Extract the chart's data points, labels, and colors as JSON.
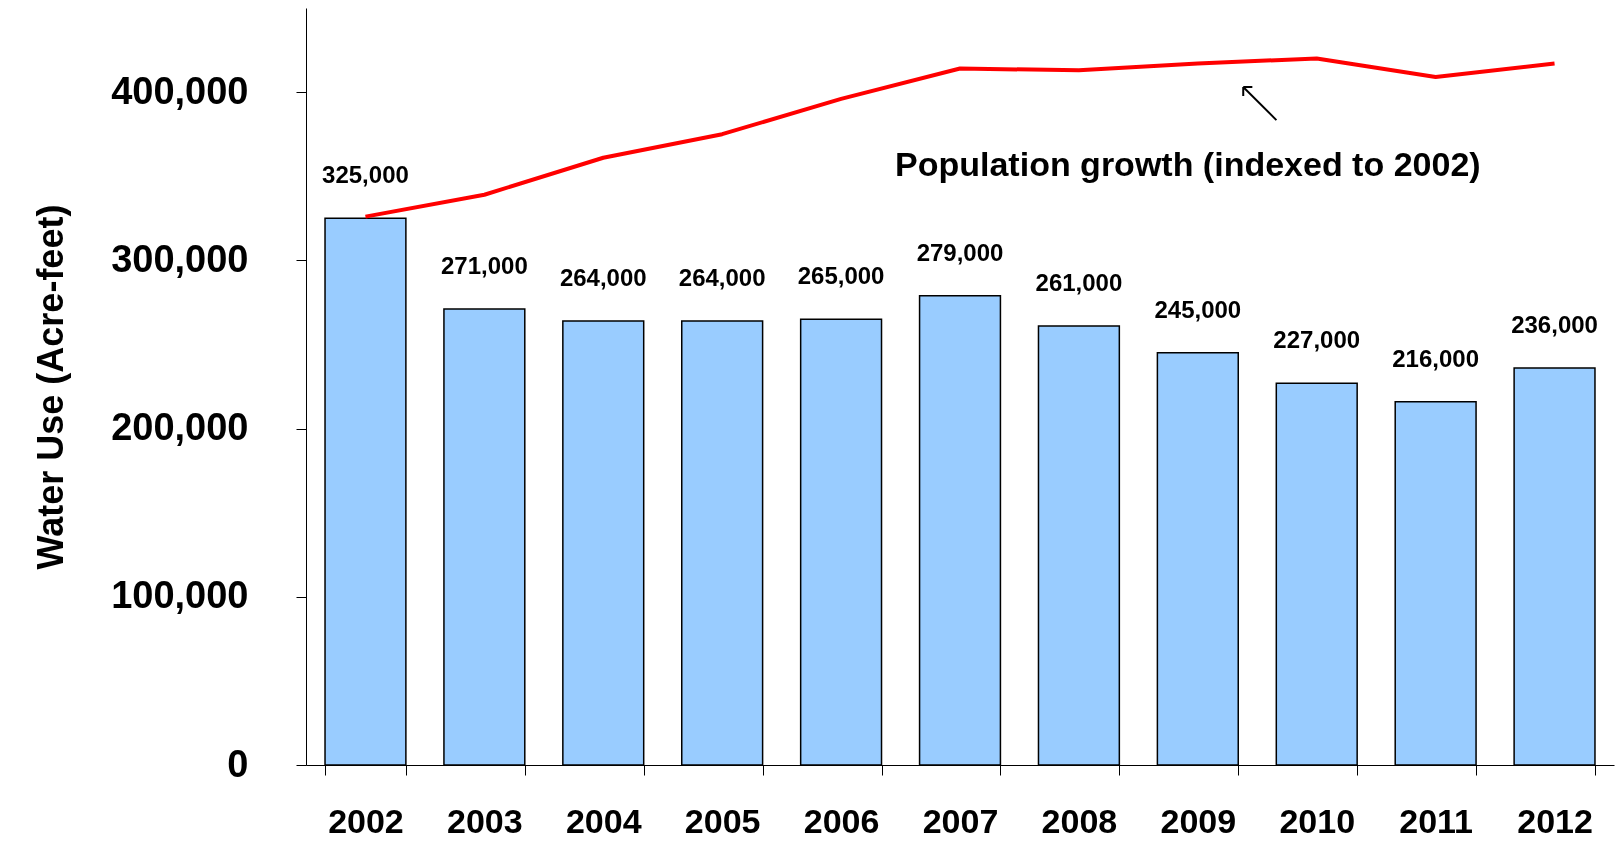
{
  "chart_data": {
    "type": "bar",
    "ylabel": "Water Use (Acre-feet)",
    "categories": [
      "2002",
      "2003",
      "2004",
      "2005",
      "2006",
      "2007",
      "2008",
      "2009",
      "2010",
      "2011",
      "2012"
    ],
    "series": [
      {
        "color": "#99ccff",
        "values": [
          325000,
          271000,
          264000,
          264000,
          265000,
          279000,
          261000,
          245000,
          227000,
          216000,
          236000
        ],
        "value_labels": [
          "325,000",
          "271,000",
          "264,000",
          "264,000",
          "265,000",
          "279,000",
          "261,000",
          "245,000",
          "227,000",
          "216,000",
          "236,000"
        ]
      },
      {
        "type": "line",
        "name": "Population growth (indexed to 2002)",
        "color": "#ff0000",
        "values": [
          326000,
          339000,
          361000,
          375000,
          396000,
          414000,
          413000,
          417000,
          420000,
          409000,
          417000
        ]
      }
    ],
    "ylim": [
      0,
      450000
    ],
    "yticks": [
      0,
      {
        "value": 100000,
        "label": "100,000"
      },
      {
        "value": 200000,
        "label": "200,000"
      },
      {
        "value": 300000,
        "label": "300,000"
      },
      {
        "value": 400000,
        "label": "400,000"
      }
    ],
    "grid": false
  }
}
